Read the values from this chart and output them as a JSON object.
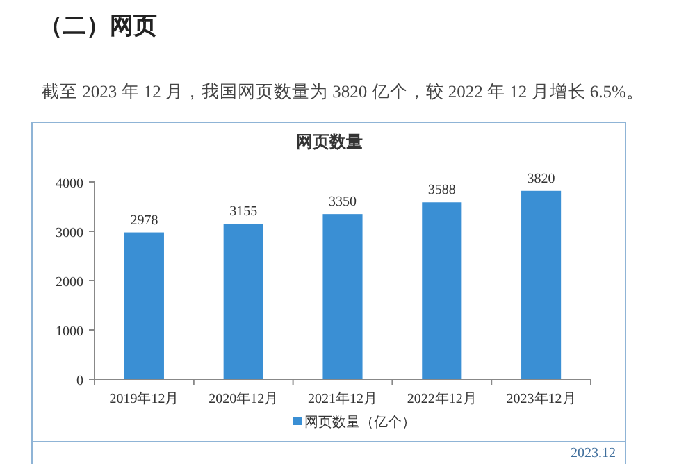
{
  "chart_data": {
    "type": "bar",
    "title": "网页数量",
    "annotations": [
      "（二）网页",
      "截至 2023 年 12 月，我国网页数量为 3820 亿个，较 2022 年 12 月增长 6.5%。",
      "2023.12"
    ],
    "categories": [
      "2019年12月",
      "2020年12月",
      "2021年12月",
      "2022年12月",
      "2023年12月"
    ],
    "series": [
      {
        "name": "网页数量（亿个）",
        "color": "#3a8fd4",
        "values": [
          2978,
          3155,
          3350,
          3588,
          3820
        ]
      }
    ],
    "ylim": [
      0,
      4000
    ],
    "yticks": [
      0,
      1000,
      2000,
      3000,
      4000
    ],
    "data_labels": true,
    "legend": "bottom",
    "grid": false
  }
}
